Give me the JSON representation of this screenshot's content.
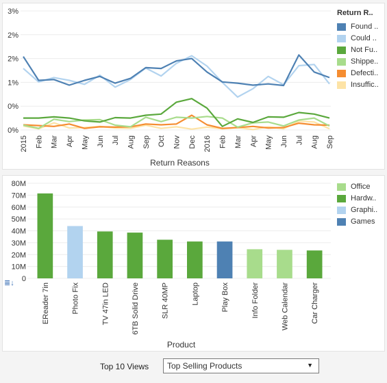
{
  "line_legend": {
    "title": "Return R..",
    "items": [
      {
        "label": "Found ..",
        "color": "#4e81b3"
      },
      {
        "label": "Could ..",
        "color": "#b2d3ef"
      },
      {
        "label": "Not Fu..",
        "color": "#5aa83c"
      },
      {
        "label": "Shippe..",
        "color": "#a8dc8c"
      },
      {
        "label": "Defecti..",
        "color": "#f58d31"
      },
      {
        "label": "Insuffic..",
        "color": "#fde3a6"
      }
    ]
  },
  "bar_legend": {
    "items": [
      {
        "label": "Office",
        "color": "#a8dc8c"
      },
      {
        "label": "Hardw..",
        "color": "#5aa83c"
      },
      {
        "label": "Graphi..",
        "color": "#b2d3ef"
      },
      {
        "label": "Games",
        "color": "#4e81b3"
      }
    ]
  },
  "chart_data": [
    {
      "type": "line",
      "xlabel": "Return Reasons",
      "ylabel": "",
      "y_tick_labels": [
        "0%",
        "0%",
        "1%",
        "2%",
        "2%",
        "3%"
      ],
      "ylim": [
        0,
        3
      ],
      "legend_position": "right",
      "categories": [
        "2015",
        "Feb",
        "Mar",
        "Apr",
        "May",
        "Jun",
        "Jul",
        "Aug",
        "Sep",
        "Oct",
        "Nov",
        "Dec",
        "2016",
        "Feb",
        "Mar",
        "Apr",
        "May",
        "Jun",
        "Jul",
        "Aug",
        "Sep"
      ],
      "series": [
        {
          "name": "Found ..",
          "color": "#4e81b3",
          "values": [
            1.85,
            1.25,
            1.27,
            1.13,
            1.25,
            1.35,
            1.18,
            1.3,
            1.57,
            1.55,
            1.74,
            1.8,
            1.46,
            1.21,
            1.18,
            1.13,
            1.16,
            1.12,
            1.89,
            1.46,
            1.32
          ]
        },
        {
          "name": "Could ..",
          "color": "#b2d3ef",
          "values": [
            1.55,
            1.21,
            1.32,
            1.25,
            1.15,
            1.38,
            1.08,
            1.27,
            1.56,
            1.36,
            1.68,
            1.87,
            1.61,
            1.2,
            0.83,
            1.04,
            1.35,
            1.14,
            1.62,
            1.65,
            1.16
          ]
        },
        {
          "name": "Not Fu..",
          "color": "#5aa83c",
          "values": [
            0.3,
            0.3,
            0.33,
            0.3,
            0.23,
            0.2,
            0.31,
            0.3,
            0.37,
            0.4,
            0.7,
            0.79,
            0.55,
            0.09,
            0.28,
            0.19,
            0.33,
            0.32,
            0.44,
            0.4,
            0.3
          ]
        },
        {
          "name": "Shippe..",
          "color": "#a8dc8c",
          "values": [
            0.12,
            0.04,
            0.27,
            0.21,
            0.25,
            0.26,
            0.12,
            0.08,
            0.32,
            0.21,
            0.32,
            0.3,
            0.34,
            0.3,
            0.07,
            0.18,
            0.2,
            0.1,
            0.25,
            0.3,
            0.1
          ]
        },
        {
          "name": "Defecti..",
          "color": "#f58d31",
          "values": [
            0.13,
            0.11,
            0.09,
            0.15,
            0.04,
            0.08,
            0.07,
            0.08,
            0.15,
            0.13,
            0.15,
            0.37,
            0.13,
            0.04,
            0.06,
            0.09,
            0.05,
            0.06,
            0.17,
            0.13,
            0.12
          ]
        },
        {
          "name": "Insuffic..",
          "color": "#fde3a6",
          "values": [
            0.1,
            0.03,
            0.18,
            0.05,
            0.06,
            0.09,
            0.05,
            0.04,
            0.12,
            0.04,
            0.08,
            0.02,
            0.07,
            0.03,
            0.06,
            0.01,
            0.08,
            0.03,
            0.22,
            0.2,
            0.03
          ]
        }
      ]
    },
    {
      "type": "bar",
      "xlabel": "Product",
      "ylabel": "",
      "y_tick_labels": [
        "0",
        "10M",
        "20M",
        "30M",
        "40M",
        "50M",
        "60M",
        "70M",
        "80M"
      ],
      "ylim": [
        0,
        80
      ],
      "legend_position": "right",
      "categories": [
        "EReader 7in",
        "Photo Fix",
        "TV 47in LED",
        "6TB Solid Drive",
        "SLR 40MP",
        "Laptop",
        "Play Box",
        "Info Folder",
        "Web Calendar",
        "Car Charger"
      ],
      "values": [
        71.5,
        44,
        39.5,
        38.5,
        32.5,
        31,
        31,
        24.5,
        24,
        23.5
      ],
      "bar_colors": [
        "#5aa83c",
        "#b2d3ef",
        "#5aa83c",
        "#5aa83c",
        "#5aa83c",
        "#5aa83c",
        "#4e81b3",
        "#a8dc8c",
        "#a8dc8c",
        "#5aa83c"
      ]
    }
  ],
  "footer": {
    "label": "Top 10 Views",
    "selected_view": "Top Selling Products",
    "dropdown_arrow": "▼"
  },
  "sort_icon_glyph": "≣↓"
}
